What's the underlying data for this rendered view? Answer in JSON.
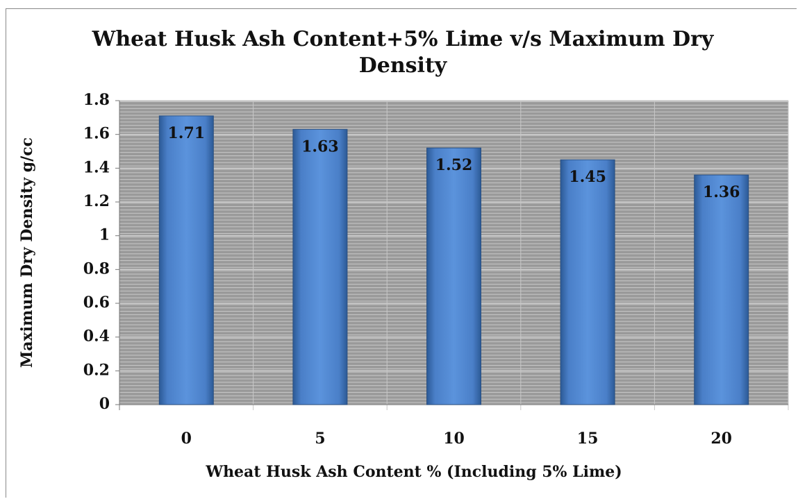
{
  "chart_data": {
    "type": "bar",
    "title": "Wheat Husk Ash Content+5% Lime v/s Maximum Dry Density",
    "x_label": "Wheat Husk Ash Content % (Including 5% Lime)",
    "y_label": "Maximum Dry Density g/cc",
    "categories": [
      "0",
      "5",
      "10",
      "15",
      "20"
    ],
    "values": [
      1.71,
      1.63,
      1.52,
      1.45,
      1.36
    ],
    "color": "#4f81bd",
    "ylim": [
      0,
      1.8
    ],
    "yticks": [
      0,
      0.2,
      0.4,
      0.6,
      0.8,
      1,
      1.2,
      1.4,
      1.6,
      1.8
    ],
    "grid": true
  }
}
